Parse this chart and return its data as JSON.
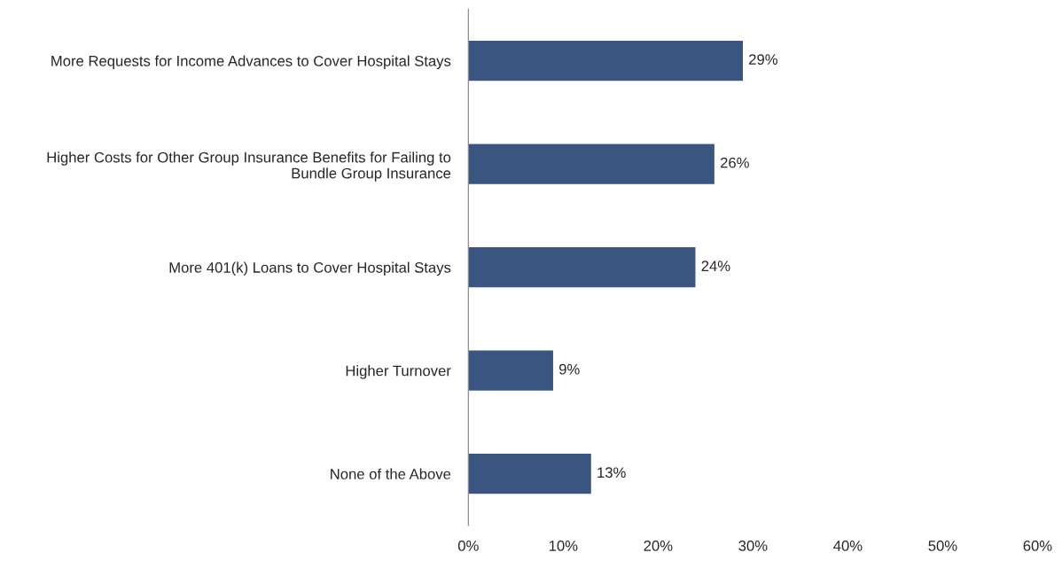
{
  "chart_data": {
    "type": "bar",
    "orientation": "horizontal",
    "categories": [
      "More Requests for Income Advances to Cover Hospital Stays",
      "Higher Costs for Other Group Insurance Benefits for Failing to\nBundle Group Insurance",
      "More 401(k) Loans to Cover Hospital Stays",
      "Higher Turnover",
      "None of the Above"
    ],
    "values": [
      29,
      26,
      24,
      9,
      13
    ],
    "value_labels": [
      "29%",
      "26%",
      "24%",
      "9%",
      "13%"
    ],
    "color": "#3a5680",
    "xlim": [
      0,
      60
    ],
    "xticks": [
      {
        "value": 0,
        "label": "0%"
      },
      {
        "value": 10,
        "label": "10%"
      },
      {
        "value": 20,
        "label": "20%"
      },
      {
        "value": 30,
        "label": "30%"
      },
      {
        "value": 40,
        "label": "40%"
      },
      {
        "value": 50,
        "label": "50%"
      },
      {
        "value": 60,
        "label": "60%"
      }
    ],
    "grid": false,
    "legend": false
  }
}
